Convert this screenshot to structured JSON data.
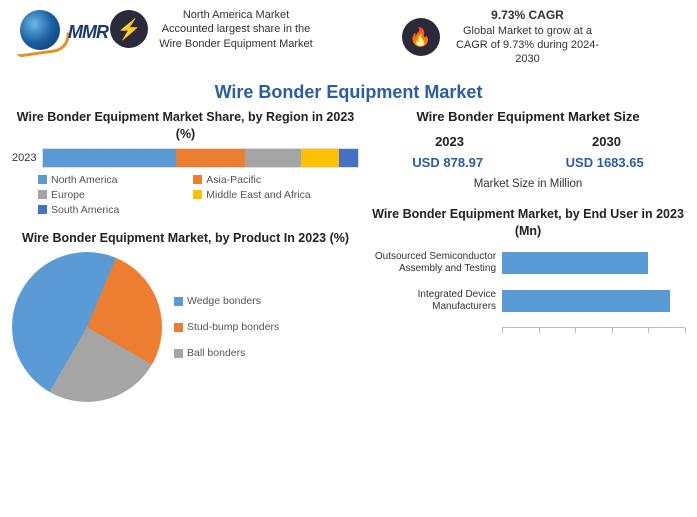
{
  "logo_text": "MMR",
  "callout1": {
    "text": "North America Market Accounted largest share in the Wire Bonder Equipment Market"
  },
  "callout2": {
    "title": "9.73% CAGR",
    "text": "Global Market to grow at a CAGR of 9.73% during 2024-2030"
  },
  "main_title": "Wire Bonder Equipment Market",
  "region_chart": {
    "title": "Wire Bonder Equipment Market Share, by Region in 2023 (%)",
    "y_label": "2023",
    "type": "stacked-bar",
    "segments": [
      {
        "label": "North America",
        "value": 42,
        "color": "#5a9bd5"
      },
      {
        "label": "Asia-Pacific",
        "value": 22,
        "color": "#ed7d31"
      },
      {
        "label": "Europe",
        "value": 18,
        "color": "#a5a5a5"
      },
      {
        "label": "Middle East and Africa",
        "value": 12,
        "color": "#ffc000"
      },
      {
        "label": "South America",
        "value": 6,
        "color": "#4472c4"
      }
    ]
  },
  "product_chart": {
    "title": "Wire Bonder Equipment Market, by Product In 2023 (%)",
    "type": "pie",
    "slices": [
      {
        "label": "Wedge bonders",
        "value": 48,
        "color": "#5a9bd5"
      },
      {
        "label": "Stud-bump bonders",
        "value": 27,
        "color": "#ed7d31"
      },
      {
        "label": "Ball bonders",
        "value": 25,
        "color": "#a5a5a5"
      }
    ]
  },
  "market_size": {
    "title": "Wire Bonder Equipment Market Size",
    "years": [
      "2023",
      "2030"
    ],
    "values": [
      "USD 878.97",
      "USD 1683.65"
    ],
    "unit": "Market Size in Million"
  },
  "enduser_chart": {
    "title": "Wire Bonder Equipment Market, by End User in 2023 (Mn)",
    "type": "bar-horizontal",
    "bars": [
      {
        "label": "Outsourced Semiconductor Assembly and Testing",
        "value": 80
      },
      {
        "label": "Integrated Device Manufacturers",
        "value": 92
      }
    ],
    "bar_color": "#5a9bd5",
    "xmax": 100
  }
}
